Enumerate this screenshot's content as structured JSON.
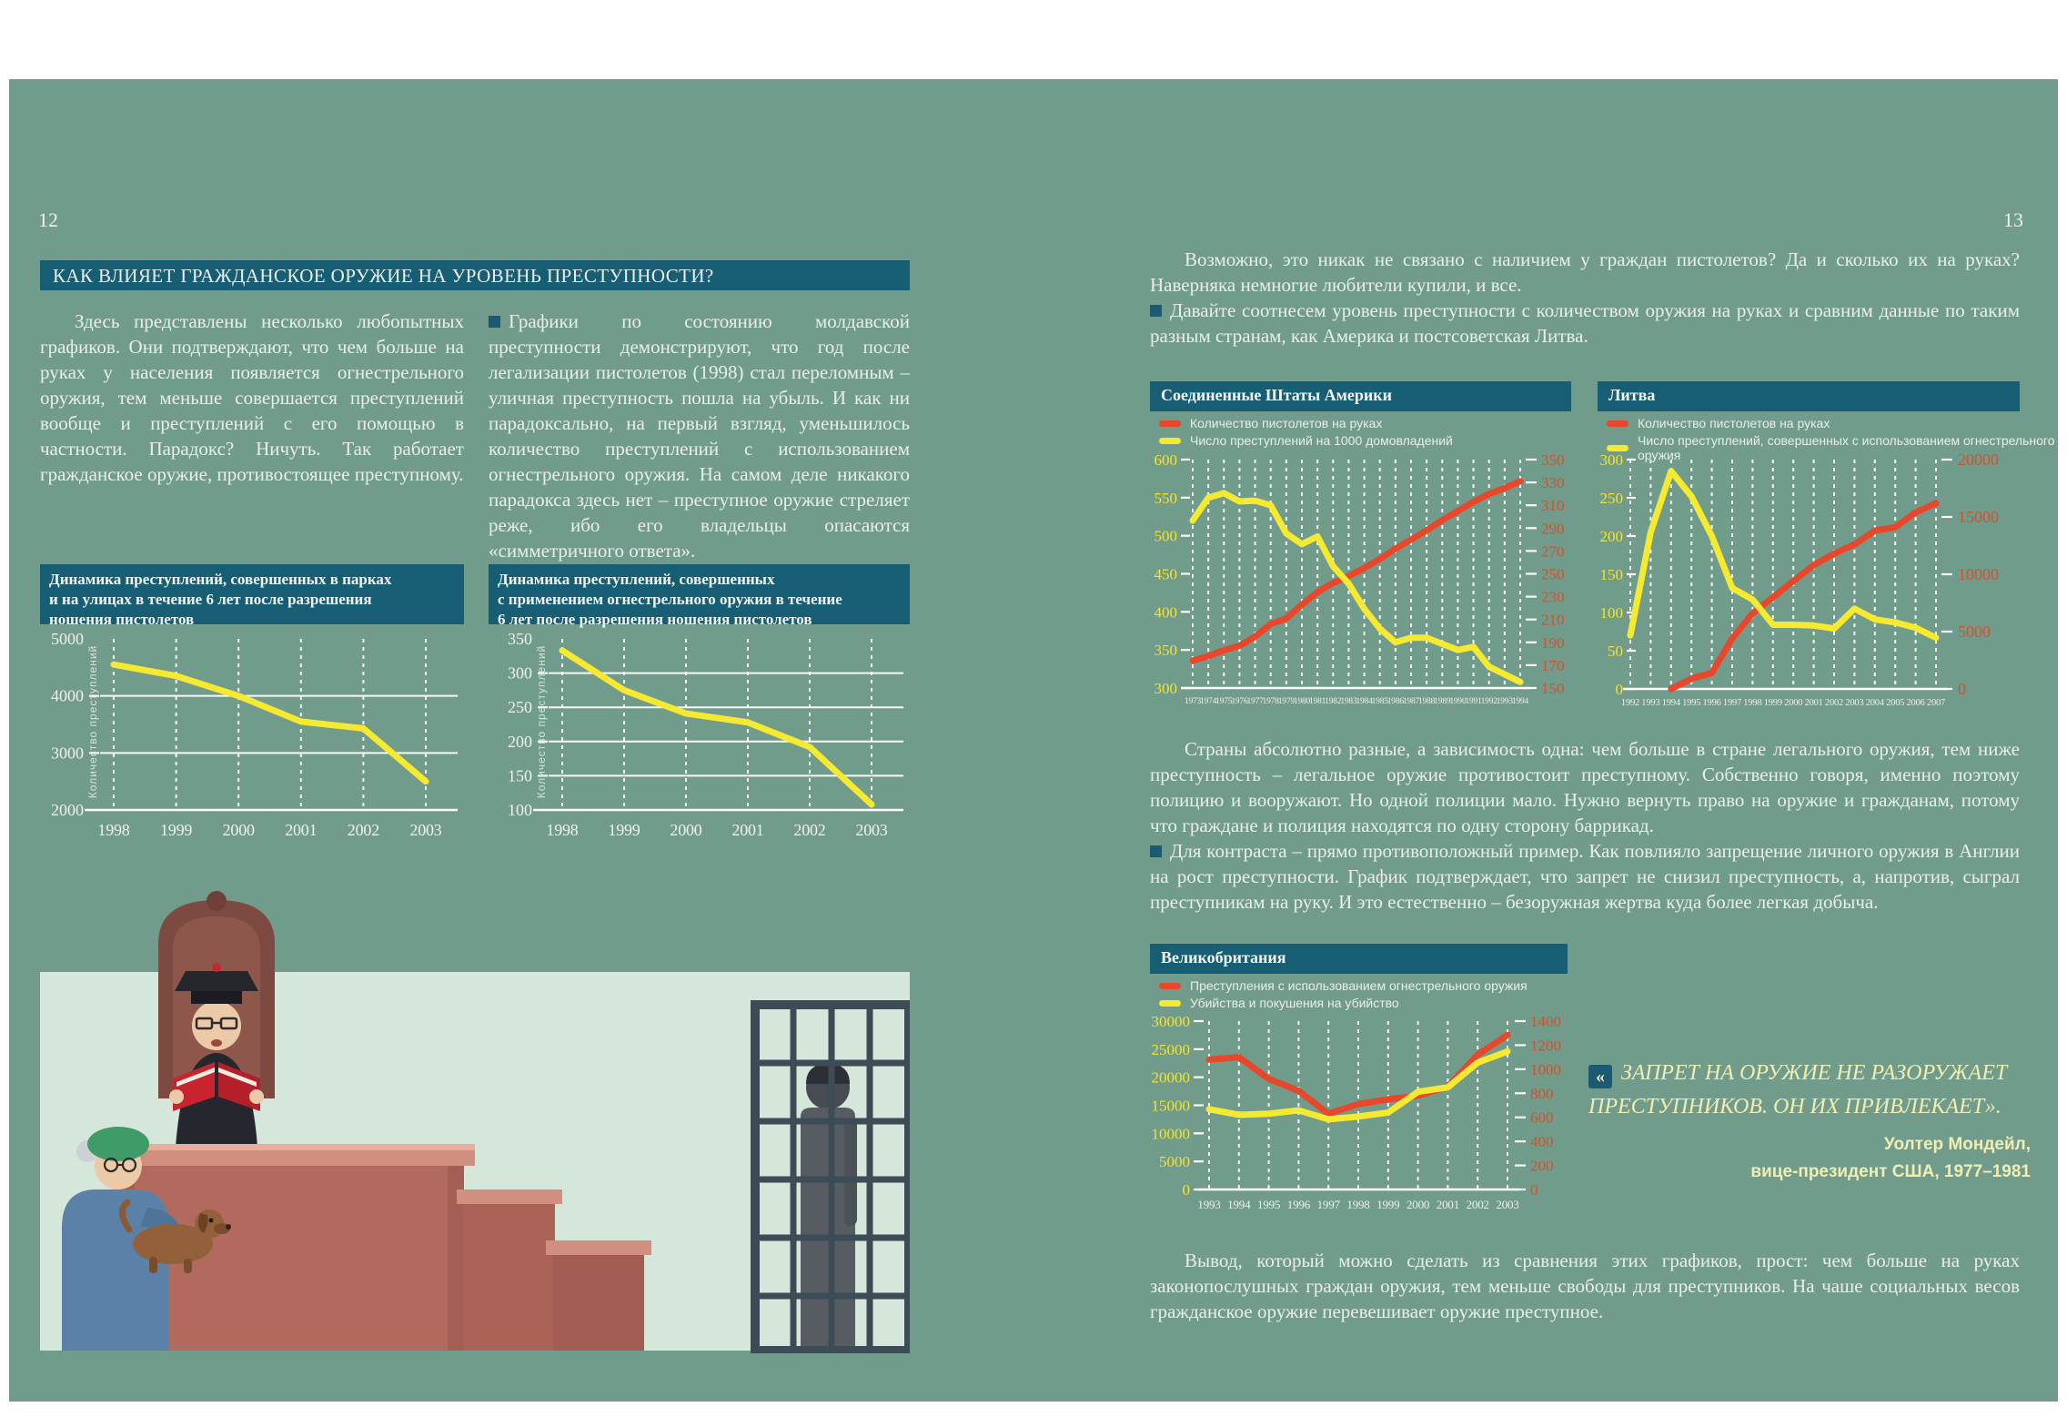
{
  "colors": {
    "page_background": "#719c8b",
    "panel_teal": "#175e74",
    "accent_yellow": "#f6e931",
    "accent_red": "#e8472c",
    "axis_red_labels": "#d0522d",
    "body_text": "#e9efe8",
    "quote_cream": "#f0eeb2"
  },
  "page_left": {
    "number": "12",
    "title": "КАК ВЛИЯЕТ ГРАЖДАНСКОЕ ОРУЖИЕ НА УРОВЕНЬ ПРЕСТУПНОСТИ?",
    "para1": "Здесь представлены несколько любопытных графиков. Они подтверждают, что чем больше на руках у населения появляется огнестрельного оружия, тем меньше совершается преступлений вообще и преступлений с его помощью в частности. Парадокс? Ничуть. Так работает гражданское оружие, противостоящее преступному.",
    "para2": "Графики по состоянию молдавской преступности демонстрируют, что год после легализации пистолетов (1998) стал переломным – уличная преступность пошла на убыль. И как ни парадоксально, на первый взгляд, уменьшилось количество преступлений с использованием огнестрельного оружия. На самом деле никакого парадокса здесь нет – преступное оружие стреляет реже, ибо его владельцы опасаются «симметричного ответа»."
  },
  "page_right": {
    "number": "13",
    "para_top1": "Возможно, это никак не связано с наличием у граждан пистолетов? Да и сколько их на руках? Наверняка немногие любители купили, и все.",
    "para_top2": "Давайте соотнесем уровень преступности с количеством оружия на руках и сравним данные по таким разным странам, как Америка и постсоветская Литва.",
    "para_mid1": "Страны абсолютно разные, а зависимость одна: чем больше в стране легального оружия, тем ниже преступность – легальное оружие противостоит преступному. Собственно говоря, именно поэтому полицию и вооружают. Но одной полиции мало. Нужно вернуть право на оружие и гражданам, потому что граждане и полиция находятся по одну сторону баррикад.",
    "para_mid2": "Для контраста – прямо противоположный пример. Как повлияло запрещение личного оружия в Англии на рост преступности. График подтверждает, что запрет не снизил преступность, а, напротив, сыграл преступникам на руку. И это естественно – безоружная жертва куда более легкая добыча.",
    "para_end": "Вывод, который можно сделать из сравнения этих графиков, прост: чем больше на руках законопослушных граждан оружия, тем меньше свободы для преступников. На чаше социальных весов гражданское оружие перевешивает оружие преступное.",
    "quote": {
      "mark": "«",
      "text": "ЗАПРЕТ НА ОРУЖИЕ НЕ РАЗОРУЖАЕТ ПРЕСТУПНИКОВ. ОН ИХ ПРИВЛЕКАЕТ».",
      "author": "Уолтер Мондейл,",
      "role": "вице-президент США, 1977–1981"
    }
  },
  "chart_data": [
    {
      "id": "parks",
      "type": "line",
      "title": "Динамика преступлений, совершенных в парках и на улицах в течение 6 лет после разрешения ношения пистолетов",
      "title_lines": [
        "Динамика преступлений, совершенных в парках",
        "и на улицах в течение 6 лет после разрешения",
        "ношения пистолетов"
      ],
      "ylabel": "Количество преступлений",
      "x": [
        1998,
        1999,
        2000,
        2001,
        2002,
        2003
      ],
      "series": [
        {
          "name": "Количество преступлений",
          "color": "#f6e931",
          "axis": "left",
          "values": [
            4550,
            4350,
            4000,
            3550,
            3430,
            2500
          ]
        }
      ],
      "left_axis": {
        "min": 2000,
        "max": 5000,
        "ticks": [
          5000,
          4000,
          3000,
          2000
        ]
      }
    },
    {
      "id": "guns",
      "type": "line",
      "title": "Динамика преступлений, совершенных с применением огнестрельного оружия в течение 6 лет после разрешения ношения пистолетов",
      "title_lines": [
        "Динамика преступлений, совершенных",
        "с применением огнестрельного оружия в течение",
        "6 лет после разрешения ношения пистолетов"
      ],
      "ylabel": "Количество преступлений",
      "x": [
        1998,
        1999,
        2000,
        2001,
        2002,
        2003
      ],
      "series": [
        {
          "name": "Количество преступлений",
          "color": "#f6e931",
          "axis": "left",
          "values": [
            333,
            275,
            241,
            228,
            192,
            108
          ]
        }
      ],
      "left_axis": {
        "min": 100,
        "max": 350,
        "ticks": [
          350,
          300,
          250,
          200,
          150,
          100
        ]
      }
    },
    {
      "id": "usa",
      "type": "line",
      "title": "Соединенные Штаты Америки",
      "x": [
        1973,
        1974,
        1975,
        1976,
        1977,
        1978,
        1979,
        1980,
        1981,
        1982,
        1983,
        1984,
        1985,
        1986,
        1987,
        1988,
        1989,
        1990,
        1991,
        1992,
        1993,
        1994
      ],
      "series": [
        {
          "name": "Количество пистолетов на руках",
          "color": "#e8472c",
          "axis": "right",
          "values": [
            174,
            178,
            183,
            187,
            195,
            206,
            211,
            223,
            234,
            242,
            248,
            255,
            263,
            272,
            280,
            288,
            297,
            305,
            313,
            320,
            325,
            331
          ]
        },
        {
          "name": "Число преступлений на 1000 домовладений",
          "color": "#f6e931",
          "axis": "left",
          "values": [
            520,
            550,
            556,
            545,
            546,
            540,
            503,
            489,
            499,
            460,
            437,
            404,
            378,
            360,
            366,
            366,
            358,
            350,
            354,
            328,
            318,
            308
          ]
        }
      ],
      "left_axis": {
        "min": 300,
        "max": 600,
        "ticks": [
          600,
          550,
          500,
          450,
          400,
          350,
          300
        ]
      },
      "right_axis": {
        "min": 150,
        "max": 350,
        "ticks": [
          350,
          330,
          310,
          290,
          270,
          250,
          230,
          210,
          190,
          170,
          150
        ]
      }
    },
    {
      "id": "lt",
      "type": "line",
      "title": "Литва",
      "x": [
        1992,
        1993,
        1994,
        1995,
        1996,
        1997,
        1998,
        1999,
        2000,
        2001,
        2002,
        2003,
        2004,
        2005,
        2006,
        2007
      ],
      "series": [
        {
          "name": "Количество пистолетов на руках",
          "color": "#e8472c",
          "axis": "right",
          "values": [
            null,
            null,
            0,
            900,
            1400,
            4400,
            6600,
            8000,
            9400,
            10800,
            11800,
            12600,
            13800,
            14100,
            15400,
            16200
          ]
        },
        {
          "name": "Число преступлений, совершенных с использованием огнестрельного оружия",
          "color": "#f6e931",
          "axis": "left",
          "values": [
            70,
            205,
            285,
            252,
            200,
            132,
            117,
            84,
            84,
            83,
            79,
            105,
            91,
            87,
            80,
            67
          ]
        }
      ],
      "left_axis": {
        "min": 0,
        "max": 300,
        "ticks": [
          300,
          250,
          200,
          150,
          100,
          50,
          0
        ]
      },
      "right_axis": {
        "min": 0,
        "max": 20000,
        "ticks": [
          20000,
          15000,
          10000,
          5000,
          0
        ]
      }
    },
    {
      "id": "uk",
      "type": "line",
      "title": "Великобритания",
      "x": [
        1993,
        1994,
        1995,
        1996,
        1997,
        1998,
        1999,
        2000,
        2001,
        2002,
        2003
      ],
      "series": [
        {
          "name": "Преступления с использованием огнестрельного оружия",
          "color": "#e8472c",
          "axis": "right",
          "values": [
            1080,
            1100,
            920,
            820,
            630,
            710,
            750,
            780,
            855,
            1120,
            1285
          ]
        },
        {
          "name": "Убийства и покушения на убийство",
          "color": "#f6e931",
          "axis": "left",
          "values": [
            14300,
            13300,
            13500,
            14100,
            12500,
            13000,
            13700,
            17400,
            18200,
            22600,
            24600
          ]
        }
      ],
      "left_axis": {
        "min": 0,
        "max": 30000,
        "ticks": [
          30000,
          25000,
          20000,
          15000,
          10000,
          5000,
          0
        ]
      },
      "right_axis": {
        "min": 0,
        "max": 1400,
        "ticks": [
          1400,
          1200,
          1000,
          800,
          600,
          400,
          200,
          0
        ]
      }
    }
  ]
}
